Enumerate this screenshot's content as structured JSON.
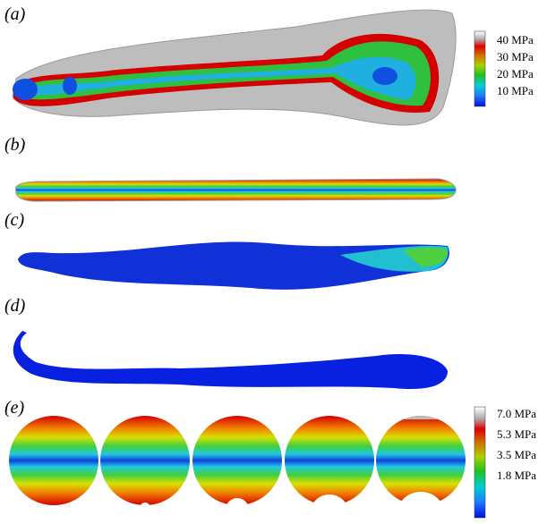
{
  "panels": [
    {
      "label": "(a)"
    },
    {
      "label": "(b)"
    },
    {
      "label": "(c)"
    },
    {
      "label": "(d)"
    },
    {
      "label": "(e)"
    }
  ],
  "colorbars": [
    {
      "labels": [
        "40 MPa",
        "30 MPa",
        "20 MPa",
        "10 MPa"
      ]
    },
    {
      "labels": [
        "7.0 MPa",
        "5.3 MPa",
        "3.5 MPa",
        "1.8 MPa"
      ]
    }
  ]
}
